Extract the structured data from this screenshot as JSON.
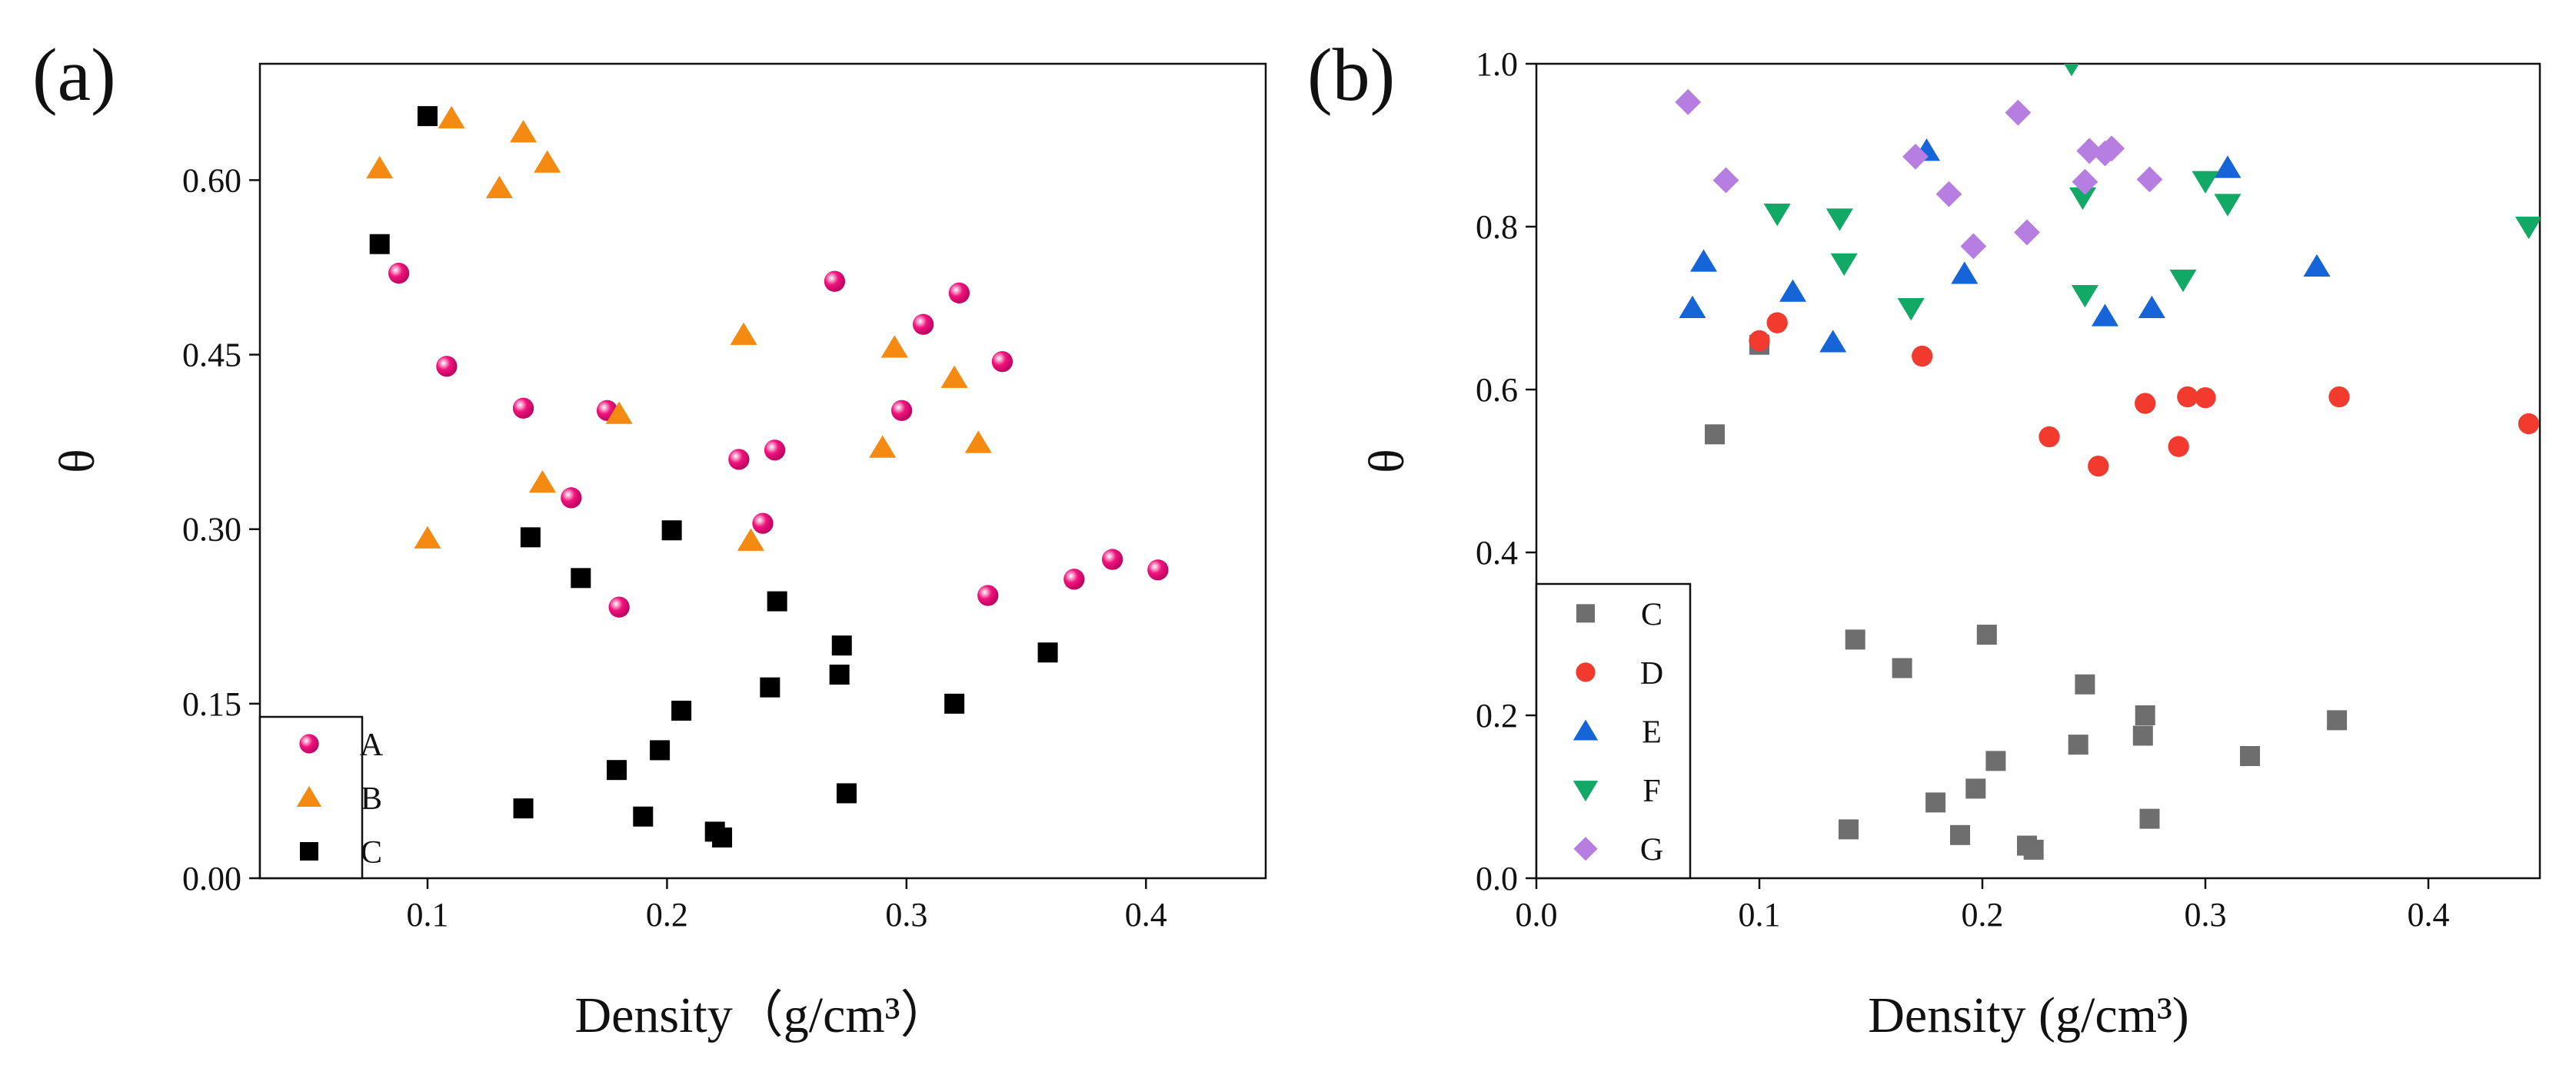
{
  "chart_data": [
    {
      "type": "scatter",
      "panel_label": "(a)",
      "xlabel": "Density（g/cm³）",
      "ylabel": "θ",
      "xlim": [
        0.03,
        0.45
      ],
      "ylim": [
        0.0,
        0.7
      ],
      "xticks": [
        0.1,
        0.2,
        0.3,
        0.4
      ],
      "xtick_labels": [
        "0.1",
        "0.2",
        "0.3",
        "0.4"
      ],
      "yticks": [
        0.0,
        0.15,
        0.3,
        0.45,
        0.6
      ],
      "ytick_labels": [
        "0.00",
        "0.15",
        "0.30",
        "0.45",
        "0.60"
      ],
      "legend_position": "bottom-left",
      "series": [
        {
          "name": "A",
          "marker": "sphere",
          "color": "#f0147e",
          "x": [
            0.088,
            0.108,
            0.14,
            0.16,
            0.175,
            0.18,
            0.23,
            0.24,
            0.245,
            0.27,
            0.298,
            0.307,
            0.322,
            0.334,
            0.34,
            0.37,
            0.386,
            0.405
          ],
          "y": [
            0.52,
            0.44,
            0.404,
            0.327,
            0.402,
            0.233,
            0.36,
            0.305,
            0.368,
            0.513,
            0.402,
            0.476,
            0.503,
            0.243,
            0.444,
            0.257,
            0.274,
            0.265
          ]
        },
        {
          "name": "B",
          "marker": "triangle",
          "color": "#f58a13",
          "x": [
            0.08,
            0.1,
            0.11,
            0.13,
            0.14,
            0.15,
            0.148,
            0.18,
            0.232,
            0.235,
            0.29,
            0.295,
            0.32,
            0.33
          ],
          "y": [
            0.61,
            0.292,
            0.653,
            0.593,
            0.641,
            0.615,
            0.34,
            0.399,
            0.467,
            0.29,
            0.37,
            0.456,
            0.43,
            0.374
          ]
        },
        {
          "name": "C",
          "marker": "square",
          "color": "#000000",
          "x": [
            0.08,
            0.1,
            0.14,
            0.143,
            0.164,
            0.179,
            0.19,
            0.197,
            0.202,
            0.206,
            0.22,
            0.223,
            0.243,
            0.246,
            0.272,
            0.273,
            0.275,
            0.32,
            0.359
          ],
          "y": [
            0.545,
            0.655,
            0.06,
            0.293,
            0.258,
            0.093,
            0.053,
            0.11,
            0.299,
            0.144,
            0.04,
            0.035,
            0.164,
            0.238,
            0.175,
            0.2,
            0.073,
            0.15,
            0.194
          ]
        }
      ]
    },
    {
      "type": "scatter",
      "panel_label": "(b)",
      "xlabel": "Density (g/cm³)",
      "ylabel": "θ",
      "xlim": [
        0.0,
        0.45
      ],
      "ylim": [
        0.0,
        1.0
      ],
      "xticks": [
        0.0,
        0.1,
        0.2,
        0.3,
        0.4
      ],
      "xtick_labels": [
        "0.0",
        "0.1",
        "0.2",
        "0.3",
        "0.4"
      ],
      "yticks": [
        0.0,
        0.2,
        0.4,
        0.6,
        0.8,
        1.0
      ],
      "ytick_labels": [
        "0.0",
        "0.2",
        "0.4",
        "0.6",
        "0.8",
        "1.0"
      ],
      "legend_position": "bottom-left",
      "series": [
        {
          "name": "C",
          "marker": "square",
          "color": "#6e6e6e",
          "x": [
            0.08,
            0.1,
            0.14,
            0.143,
            0.164,
            0.179,
            0.19,
            0.197,
            0.202,
            0.206,
            0.22,
            0.223,
            0.243,
            0.246,
            0.272,
            0.273,
            0.275,
            0.32,
            0.359
          ],
          "y": [
            0.545,
            0.655,
            0.06,
            0.293,
            0.258,
            0.093,
            0.053,
            0.11,
            0.299,
            0.144,
            0.04,
            0.035,
            0.164,
            0.238,
            0.175,
            0.2,
            0.073,
            0.15,
            0.194
          ]
        },
        {
          "name": "D",
          "marker": "circle",
          "color": "#f23a2f",
          "x": [
            0.1,
            0.108,
            0.173,
            0.23,
            0.252,
            0.273,
            0.288,
            0.292,
            0.3,
            0.36,
            0.445
          ],
          "y": [
            0.66,
            0.682,
            0.641,
            0.542,
            0.506,
            0.583,
            0.53,
            0.591,
            0.59,
            0.591,
            0.558
          ]
        },
        {
          "name": "E",
          "marker": "triangle",
          "color": "#1565d8",
          "x": [
            0.07,
            0.075,
            0.115,
            0.133,
            0.175,
            0.192,
            0.255,
            0.276,
            0.31,
            0.35
          ],
          "y": [
            0.7,
            0.757,
            0.72,
            0.658,
            0.893,
            0.742,
            0.69,
            0.7,
            0.872,
            0.751
          ]
        },
        {
          "name": "F",
          "marker": "triangle-down",
          "color": "#12a866",
          "x": [
            0.108,
            0.136,
            0.138,
            0.168,
            0.24,
            0.245,
            0.246,
            0.29,
            0.3,
            0.31,
            0.445
          ],
          "y": [
            0.816,
            0.81,
            0.755,
            0.7,
            1.0,
            0.836,
            0.716,
            0.735,
            0.856,
            0.828,
            0.8
          ]
        },
        {
          "name": "G",
          "marker": "diamond",
          "color": "#b57ee0",
          "x": [
            0.068,
            0.085,
            0.17,
            0.185,
            0.196,
            0.216,
            0.22,
            0.246,
            0.248,
            0.255,
            0.258,
            0.275
          ],
          "y": [
            0.953,
            0.857,
            0.886,
            0.84,
            0.776,
            0.94,
            0.793,
            0.855,
            0.893,
            0.89,
            0.896,
            0.858
          ]
        }
      ]
    }
  ]
}
